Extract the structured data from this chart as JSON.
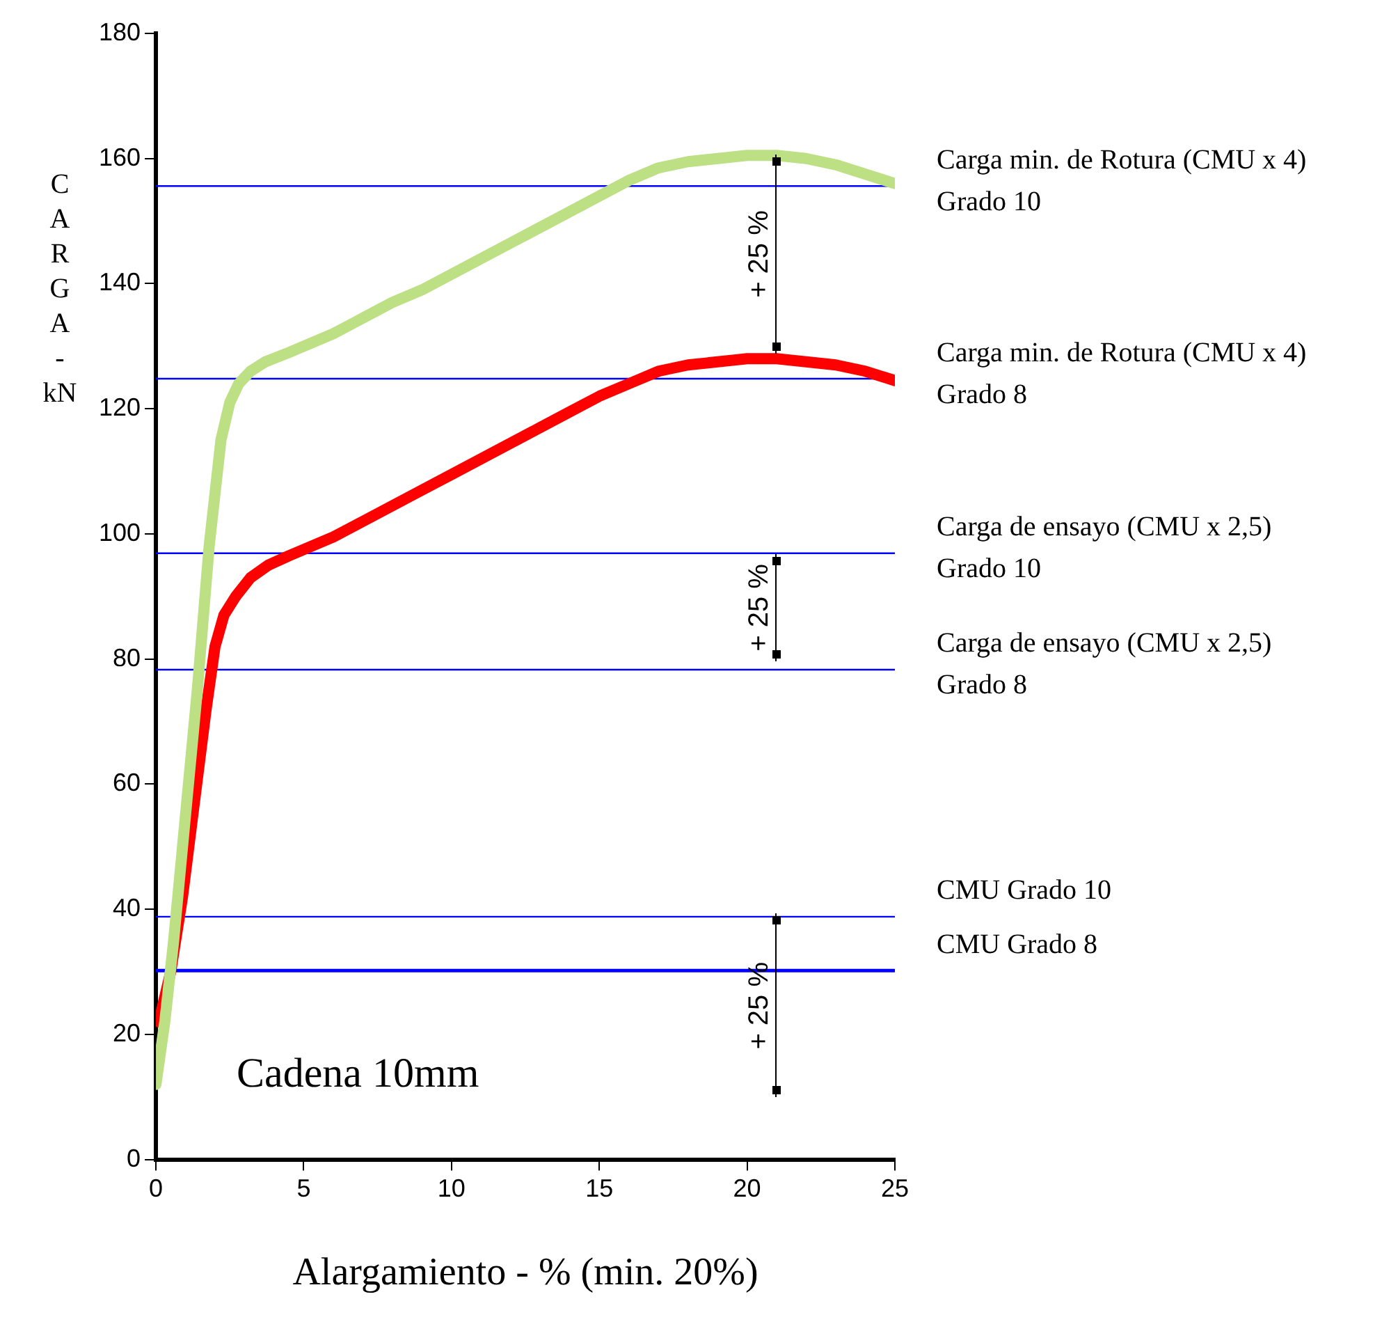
{
  "chart_data": {
    "type": "line",
    "xlabel": "Alargamiento - % (min. 20%)",
    "ylabel": "CARGA - kN",
    "xlim": [
      0,
      25
    ],
    "xticks": [
      0,
      5,
      10,
      15,
      20,
      25
    ],
    "ylim": [
      0,
      180
    ],
    "yticks": [
      0,
      20,
      40,
      60,
      80,
      100,
      120,
      140,
      160,
      180
    ],
    "grid": false,
    "legend": false,
    "marker": "none",
    "line_style": "solid",
    "series": [
      {
        "color": "#bde084",
        "x": [
          0,
          0.3,
          0.6,
          1.0,
          1.4,
          1.8,
          2.2,
          2.5,
          2.8,
          3.2,
          3.7,
          4.5,
          5,
          6,
          7,
          8,
          9,
          10,
          11,
          12,
          13,
          14,
          15,
          16,
          17,
          18,
          19,
          20,
          21,
          22,
          23,
          24,
          25
        ],
        "values": [
          12,
          22,
          35,
          55,
          75,
          98,
          115,
          121,
          124,
          126,
          127.5,
          129,
          130,
          132,
          134.5,
          137,
          139,
          141.5,
          144,
          146.5,
          149,
          151.5,
          154,
          156.5,
          158.5,
          159.5,
          160,
          160.5,
          160.5,
          160,
          159,
          157.5,
          156
        ]
      },
      {
        "color": "#ff0000",
        "x": [
          0.1,
          0.5,
          0.9,
          1.3,
          1.7,
          2.0,
          2.3,
          2.7,
          3.2,
          3.8,
          4.5,
          5,
          6,
          7,
          8,
          9,
          10,
          11,
          12,
          13,
          14,
          15,
          16,
          17,
          18,
          19,
          20,
          21,
          22,
          23,
          24,
          25
        ],
        "values": [
          22,
          30,
          42,
          57,
          72,
          82,
          87,
          90,
          93,
          95,
          96.5,
          97.5,
          99.5,
          102,
          104.5,
          107,
          109.5,
          112,
          114.5,
          117,
          119.5,
          122,
          124,
          126,
          127,
          127.5,
          128,
          128,
          127.5,
          127,
          126,
          124.5
        ]
      }
    ],
    "ref_lines": [
      {
        "axis": "y",
        "value": 155.6,
        "label": "Carga min. de Rotura (CMU x 4)\nGrado 10",
        "color": "#0000ff"
      },
      {
        "axis": "y",
        "value": 124.8,
        "label": "Carga min. de Rotura (CMU x 4)\nGrado 8",
        "color": "#0000ff"
      },
      {
        "axis": "y",
        "value": 96.9,
        "label": "Carga de ensayo (CMU x 2,5)\nGrado 10",
        "color": "#0000ff"
      },
      {
        "axis": "y",
        "value": 78.3,
        "label": "Carga de ensayo (CMU x 2,5)\nGrado 8",
        "color": "#0000ff"
      },
      {
        "axis": "y",
        "value": 38.8,
        "label": "CMU Grado 10",
        "color": "#0000ff"
      },
      {
        "axis": "y",
        "value": 30.2,
        "label": "CMU Grado 8",
        "color": "#0000ff"
      }
    ],
    "annotations": [
      "+ 25 %",
      "+ 25 %",
      "+ 25 %",
      "Cadena 10mm"
    ]
  }
}
